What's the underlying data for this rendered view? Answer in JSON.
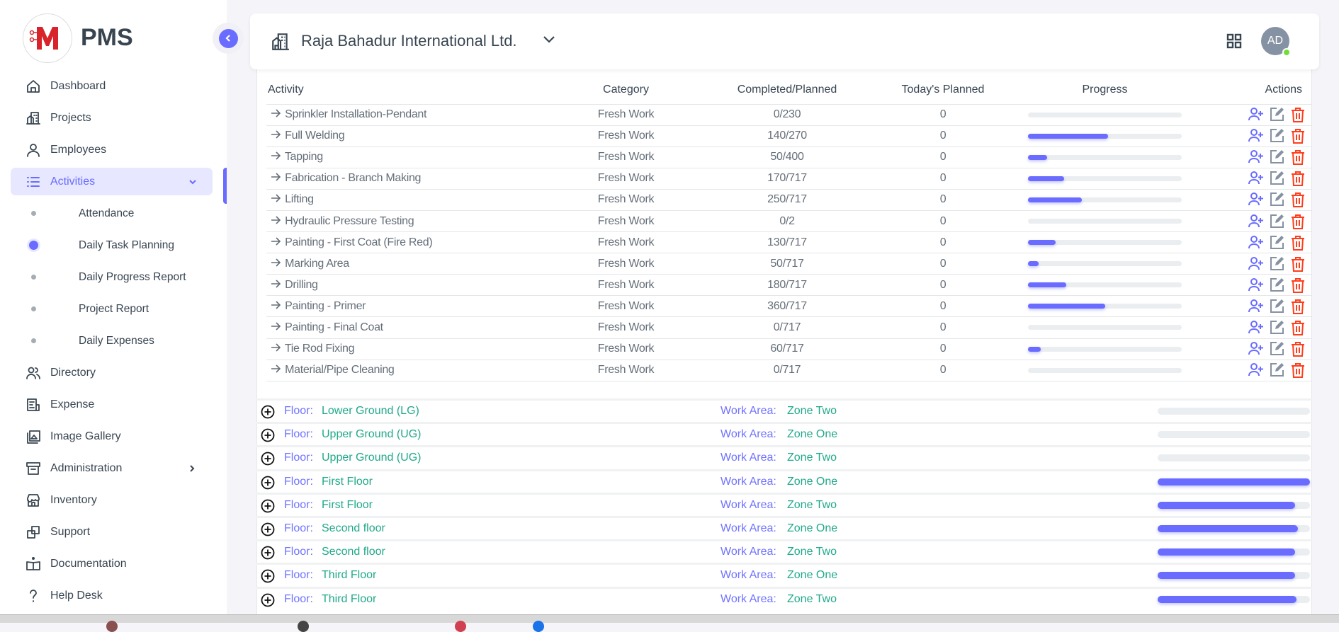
{
  "brand": {
    "name": "PMS",
    "logo_letter": "M",
    "accent": "#696cff",
    "logo_color": "#d9232a"
  },
  "sidebar": {
    "items": [
      {
        "label": "Dashboard",
        "icon": "home-icon"
      },
      {
        "label": "Projects",
        "icon": "building-icon"
      },
      {
        "label": "Employees",
        "icon": "user-icon"
      },
      {
        "label": "Activities",
        "icon": "list-icon",
        "active": true,
        "expanded": true
      },
      {
        "label": "Attendance",
        "sub": true
      },
      {
        "label": "Daily Task Planning",
        "sub": true,
        "current": true
      },
      {
        "label": "Daily Progress Report",
        "sub": true
      },
      {
        "label": "Project Report",
        "sub": true
      },
      {
        "label": "Daily Expenses",
        "sub": true
      },
      {
        "label": "Directory",
        "icon": "users-icon"
      },
      {
        "label": "Expense",
        "icon": "receipt-icon"
      },
      {
        "label": "Image Gallery",
        "icon": "gallery-icon"
      },
      {
        "label": "Administration",
        "icon": "archive-icon",
        "has_children": true
      },
      {
        "label": "Inventory",
        "icon": "store-icon"
      },
      {
        "label": "Support",
        "icon": "windows-icon"
      },
      {
        "label": "Documentation",
        "icon": "book-icon"
      },
      {
        "label": "Help Desk",
        "icon": "question-icon"
      }
    ]
  },
  "header": {
    "project": "Raja Bahadur International Ltd.",
    "avatar_initials": "AD",
    "status_color": "#71dd37"
  },
  "table": {
    "columns": [
      "Activity",
      "Category",
      "Completed/Planned",
      "Today's Planned",
      "Progress",
      "Actions"
    ],
    "rows": [
      {
        "activity": "Sprinkler Installation-Pendant",
        "category": "Fresh Work",
        "completed_planned": "0/230",
        "todays_planned": "0",
        "progress_pct": 0
      },
      {
        "activity": "Full Welding",
        "category": "Fresh Work",
        "completed_planned": "140/270",
        "todays_planned": "0",
        "progress_pct": 51.9
      },
      {
        "activity": "Tapping",
        "category": "Fresh Work",
        "completed_planned": "50/400",
        "todays_planned": "0",
        "progress_pct": 12.5
      },
      {
        "activity": "Fabrication - Branch Making",
        "category": "Fresh Work",
        "completed_planned": "170/717",
        "todays_planned": "0",
        "progress_pct": 23.7
      },
      {
        "activity": "Lifting",
        "category": "Fresh Work",
        "completed_planned": "250/717",
        "todays_planned": "0",
        "progress_pct": 34.9
      },
      {
        "activity": "Hydraulic Pressure Testing",
        "category": "Fresh Work",
        "completed_planned": "0/2",
        "todays_planned": "0",
        "progress_pct": 0
      },
      {
        "activity": "Painting - First Coat (Fire Red)",
        "category": "Fresh Work",
        "completed_planned": "130/717",
        "todays_planned": "0",
        "progress_pct": 18.1
      },
      {
        "activity": "Marking Area",
        "category": "Fresh Work",
        "completed_planned": "50/717",
        "todays_planned": "0",
        "progress_pct": 7.0
      },
      {
        "activity": "Drilling",
        "category": "Fresh Work",
        "completed_planned": "180/717",
        "todays_planned": "0",
        "progress_pct": 25.1
      },
      {
        "activity": "Painting - Primer",
        "category": "Fresh Work",
        "completed_planned": "360/717",
        "todays_planned": "0",
        "progress_pct": 50.2
      },
      {
        "activity": "Painting - Final Coat",
        "category": "Fresh Work",
        "completed_planned": "0/717",
        "todays_planned": "0",
        "progress_pct": 0
      },
      {
        "activity": "Tie Rod Fixing",
        "category": "Fresh Work",
        "completed_planned": "60/717",
        "todays_planned": "0",
        "progress_pct": 8.4
      },
      {
        "activity": "Material/Pipe Cleaning",
        "category": "Fresh Work",
        "completed_planned": "0/717",
        "todays_planned": "0",
        "progress_pct": 0
      }
    ]
  },
  "floors": {
    "floor_label": "Floor:",
    "work_area_label": "Work Area:",
    "rows": [
      {
        "floor": "Lower Ground (LG)",
        "work_area": "Zone Two",
        "progress_pct": 0
      },
      {
        "floor": "Upper Ground (UG)",
        "work_area": "Zone One",
        "progress_pct": 0
      },
      {
        "floor": "Upper Ground (UG)",
        "work_area": "Zone Two",
        "progress_pct": 0
      },
      {
        "floor": "First Floor",
        "work_area": "Zone One",
        "progress_pct": 100
      },
      {
        "floor": "First Floor",
        "work_area": "Zone Two",
        "progress_pct": 90
      },
      {
        "floor": "Second floor",
        "work_area": "Zone One",
        "progress_pct": 92
      },
      {
        "floor": "Second floor",
        "work_area": "Zone Two",
        "progress_pct": 90
      },
      {
        "floor": "Third Floor",
        "work_area": "Zone One",
        "progress_pct": 90
      },
      {
        "floor": "Third Floor",
        "work_area": "Zone Two",
        "progress_pct": 91
      }
    ]
  }
}
